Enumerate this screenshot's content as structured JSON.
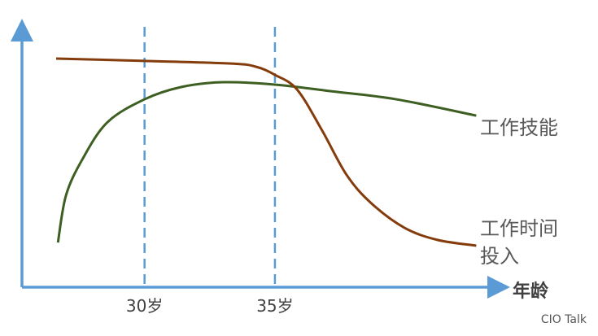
{
  "chart_data": {
    "type": "line",
    "x_label": "年龄",
    "xlim": [
      25.3,
      43.8
    ],
    "ylim": [
      0,
      100
    ],
    "xticks": [
      {
        "value": 30,
        "label": "30岁"
      },
      {
        "value": 35,
        "label": "35岁"
      }
    ],
    "grid": true,
    "axis_color": "#5b9bd5",
    "series": [
      {
        "name": "工作技能",
        "color": "#3d5f22",
        "x": [
          26.68,
          26.99,
          27.63,
          28.58,
          30,
          31.42,
          33.01,
          35,
          37.12,
          39.65,
          42.72
        ],
        "values": [
          17.0,
          35.0,
          48.9,
          62.8,
          71.5,
          76.2,
          78.0,
          77.1,
          74.6,
          71.5,
          65.3
        ]
      },
      {
        "name": "工作时间投入",
        "color": "#843c0c",
        "x": [
          26.61,
          30,
          33.32,
          34.27,
          35,
          35.85,
          36.8,
          37.75,
          38.7,
          39.97,
          41.23,
          42.72
        ],
        "values": [
          87.0,
          86.1,
          85.1,
          83.9,
          80.8,
          75.2,
          59.8,
          42.7,
          31.9,
          22.6,
          18.0,
          15.8
        ]
      }
    ],
    "watermark": "CIO Talk"
  }
}
